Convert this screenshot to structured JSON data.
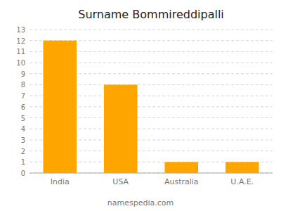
{
  "chart_data": {
    "type": "bar",
    "title": "Surname Bommireddipalli",
    "categories": [
      "India",
      "USA",
      "Australia",
      "U.A.E."
    ],
    "values": [
      12,
      8,
      1,
      1
    ],
    "color": "#FFA500",
    "ylim": [
      0,
      13
    ],
    "yticks": [
      0,
      1,
      2,
      3,
      4,
      5,
      6,
      7,
      8,
      9,
      10,
      11,
      12,
      13
    ],
    "grid": true,
    "annotations": [
      "namespedia.com"
    ]
  }
}
